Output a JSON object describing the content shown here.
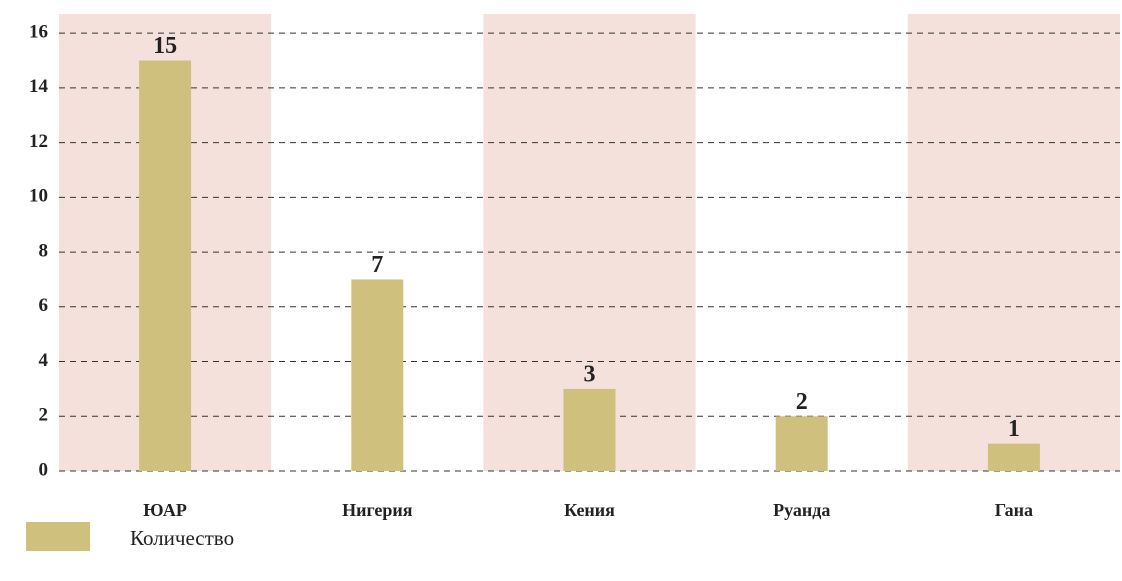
{
  "chart_data": {
    "type": "bar",
    "categories": [
      "ЮАР",
      "Нигерия",
      "Кения",
      "Руанда",
      "Гана"
    ],
    "series": [
      {
        "name": "Количество",
        "color": "#cfc07e",
        "values": [
          15,
          7,
          3,
          2,
          1
        ]
      }
    ],
    "ylim": [
      0,
      16.7
    ],
    "yticks": [
      0,
      2,
      4,
      6,
      8,
      10,
      12,
      14,
      16
    ],
    "grid": true
  }
}
